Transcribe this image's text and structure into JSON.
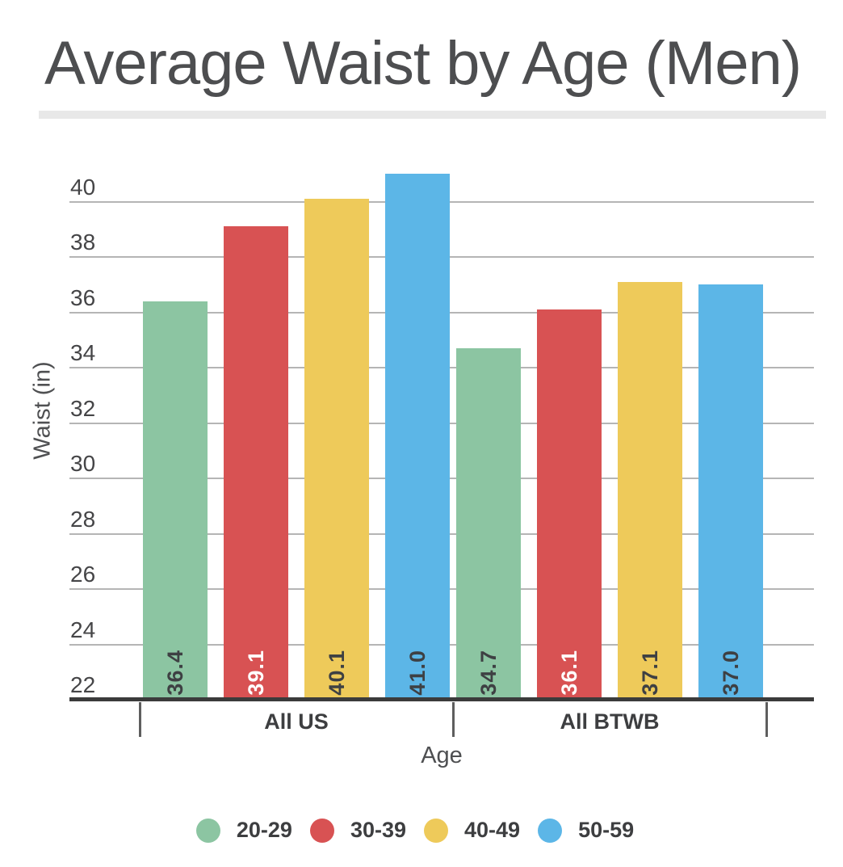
{
  "header": {
    "title": "Average Waist by Age (Men)"
  },
  "chart_data": {
    "type": "bar",
    "title": "Average Waist by Age (Men)",
    "xlabel": "Age",
    "ylabel": "Waist (in)",
    "categories": [
      "All US",
      "All BTWB"
    ],
    "series": [
      {
        "name": "20-29",
        "color": "#8cc5a2",
        "label_color": "#3e4043",
        "values": [
          36.4,
          34.7
        ]
      },
      {
        "name": "30-39",
        "color": "#d85253",
        "label_color": "#ffffff",
        "values": [
          39.1,
          36.1
        ]
      },
      {
        "name": "40-49",
        "color": "#eeca5a",
        "label_color": "#3e4043",
        "values": [
          40.1,
          37.1
        ]
      },
      {
        "name": "50-59",
        "color": "#5cb6e7",
        "label_color": "#3e4043",
        "values": [
          41.0,
          37.0
        ]
      }
    ],
    "y_ticks": [
      22,
      24,
      26,
      28,
      30,
      32,
      34,
      36,
      38,
      40
    ],
    "ylim": [
      22,
      41.3
    ],
    "grid": true,
    "legend_position": "bottom",
    "bar_value_format": "1-decimal"
  },
  "colors": {
    "gridline": "#b5b5b5",
    "axis_line": "#3b3b3b",
    "title_text": "#4d4e50",
    "tick_text": "#454547",
    "title_divider": "#e8e8e8"
  }
}
